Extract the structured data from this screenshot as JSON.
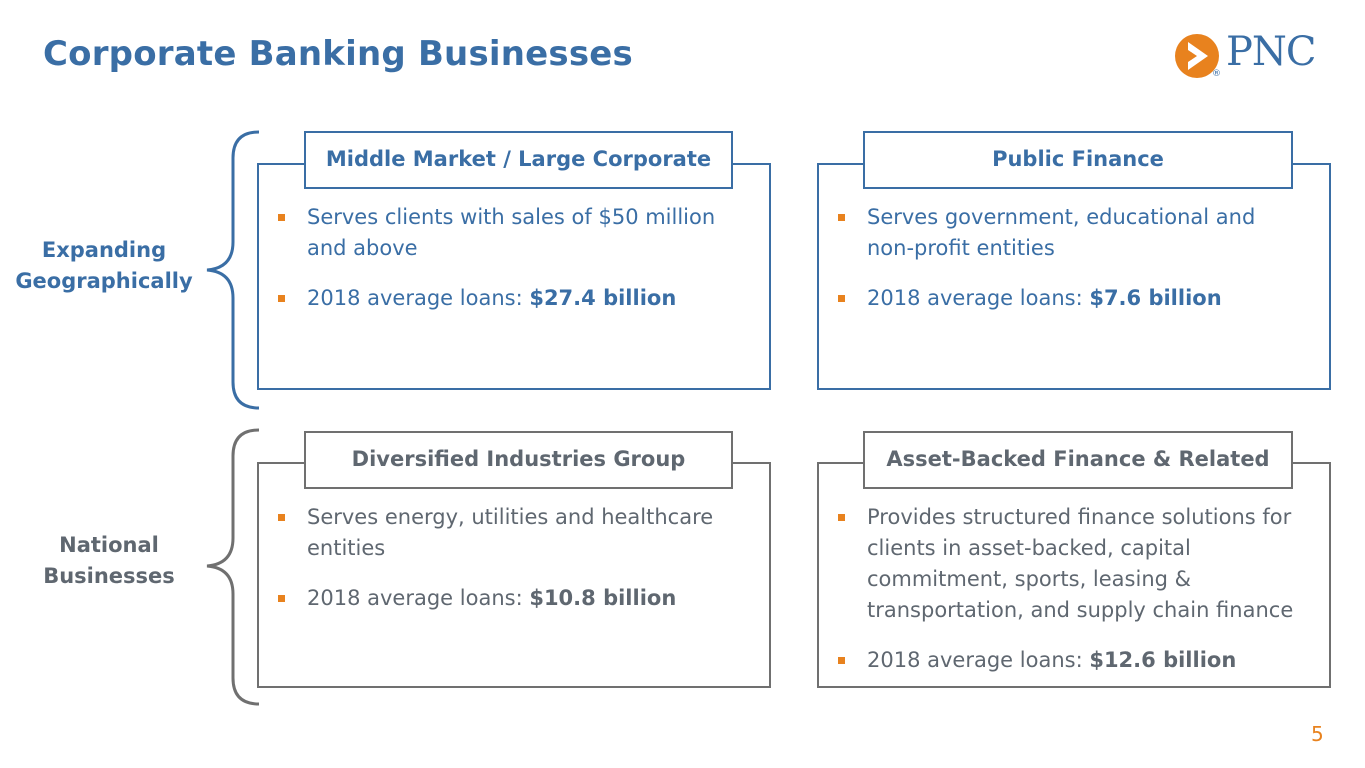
{
  "slide": {
    "title": "Corporate Banking Businesses",
    "page_number": "5"
  },
  "logo": {
    "text": "PNC",
    "registered_mark": "®",
    "icon": "pnc-arrow-logo-icon",
    "colors": {
      "orange": "#e8821e",
      "blue": "#3a6ea5"
    }
  },
  "groups": [
    {
      "label_line1": "Expanding",
      "label_line2": "Geographically",
      "color": "#3a6ea5"
    },
    {
      "label_line1": "National",
      "label_line2": "Businesses",
      "color": "#5f6770"
    }
  ],
  "panels": [
    {
      "title": "Middle Market / Large Corporate",
      "bullets": [
        {
          "text": "Serves clients with sales of $50 million and above",
          "emphasis": ""
        },
        {
          "text": "2018 average loans: ",
          "emphasis": "$27.4 billion"
        }
      ]
    },
    {
      "title": "Public Finance",
      "bullets": [
        {
          "text": "Serves government, educational and non-profit entities",
          "emphasis": ""
        },
        {
          "text": "2018 average loans: ",
          "emphasis": "$7.6 billion"
        }
      ]
    },
    {
      "title": "Diversified Industries Group",
      "bullets": [
        {
          "text": "Serves energy, utilities and healthcare entities",
          "emphasis": ""
        },
        {
          "text": "2018 average loans: ",
          "emphasis": "$10.8 billion"
        }
      ]
    },
    {
      "title": "Asset-Backed Finance & Related",
      "bullets": [
        {
          "text": "Provides structured finance solutions for clients in asset-backed, capital commitment, sports, leasing & transportation, and supply chain finance",
          "emphasis": ""
        },
        {
          "text": "2018 average loans: ",
          "emphasis": "$12.6 billion"
        }
      ]
    }
  ],
  "colors": {
    "accent_blue": "#3a6ea5",
    "gray": "#5f6770",
    "bullet_orange": "#e8821e"
  }
}
